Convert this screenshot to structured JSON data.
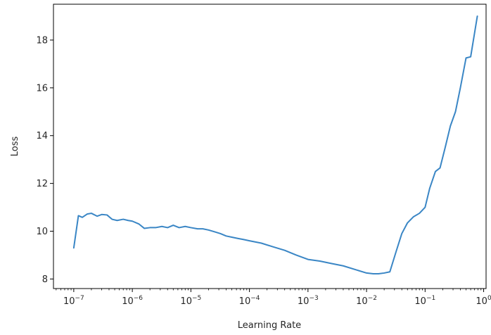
{
  "chart_data": {
    "type": "line",
    "title": "",
    "xlabel": "Learning Rate",
    "ylabel": "Loss",
    "xscale": "log",
    "xlim": [
      4.5e-08,
      1.1
    ],
    "ylim": [
      7.6,
      19.5
    ],
    "grid": false,
    "line_color": "#3a86c5",
    "x_ticks": [
      {
        "value": 1e-07,
        "base": "10",
        "exp": "−7"
      },
      {
        "value": 1e-06,
        "base": "10",
        "exp": "−6"
      },
      {
        "value": 1e-05,
        "base": "10",
        "exp": "−5"
      },
      {
        "value": 0.0001,
        "base": "10",
        "exp": "−4"
      },
      {
        "value": 0.001,
        "base": "10",
        "exp": "−3"
      },
      {
        "value": 0.01,
        "base": "10",
        "exp": "−2"
      },
      {
        "value": 0.1,
        "base": "10",
        "exp": "−1"
      },
      {
        "value": 1,
        "base": "10",
        "exp": "0"
      }
    ],
    "y_ticks": [
      {
        "value": 8,
        "label": "8"
      },
      {
        "value": 10,
        "label": "10"
      },
      {
        "value": 12,
        "label": "12"
      },
      {
        "value": 14,
        "label": "14"
      },
      {
        "value": 16,
        "label": "16"
      },
      {
        "value": 18,
        "label": "18"
      }
    ],
    "series": [
      {
        "x": [
          1e-07,
          1.2e-07,
          1.4e-07,
          1.7e-07,
          2e-07,
          2.5e-07,
          3e-07,
          3.7e-07,
          4.5e-07,
          5.5e-07,
          7e-07,
          8.5e-07,
          1e-06,
          1.3e-06,
          1.6e-06,
          2e-06,
          2.5e-06,
          3.2e-06,
          4e-06,
          5e-06,
          6.3e-06,
          8e-06,
          1e-05,
          1.3e-05,
          1.6e-05,
          2e-05,
          2.5e-05,
          3.2e-05,
          4e-05,
          5e-05,
          6.3e-05,
          8e-05,
          0.0001,
          0.00016,
          0.00025,
          0.0004,
          0.00063,
          0.001,
          0.0016,
          0.0025,
          0.004,
          0.0063,
          0.01,
          0.013,
          0.016,
          0.02,
          0.025,
          0.032,
          0.04,
          0.05,
          0.063,
          0.08,
          0.1,
          0.12,
          0.15,
          0.18,
          0.22,
          0.27,
          0.33,
          0.4,
          0.5,
          0.6,
          0.7,
          0.78
        ],
        "y": [
          9.3,
          10.65,
          10.58,
          10.72,
          10.75,
          10.63,
          10.7,
          10.68,
          10.5,
          10.45,
          10.5,
          10.45,
          10.42,
          10.3,
          10.12,
          10.15,
          10.15,
          10.2,
          10.15,
          10.25,
          10.15,
          10.2,
          10.15,
          10.1,
          10.1,
          10.05,
          9.98,
          9.9,
          9.8,
          9.75,
          9.7,
          9.65,
          9.6,
          9.5,
          9.35,
          9.2,
          9.0,
          8.82,
          8.75,
          8.65,
          8.55,
          8.4,
          8.25,
          8.22,
          8.22,
          8.25,
          8.3,
          9.15,
          9.9,
          10.35,
          10.6,
          10.75,
          11.0,
          11.8,
          12.5,
          12.65,
          13.5,
          14.4,
          15.0,
          16.0,
          17.25,
          17.3,
          18.3,
          19.0
        ]
      }
    ]
  }
}
